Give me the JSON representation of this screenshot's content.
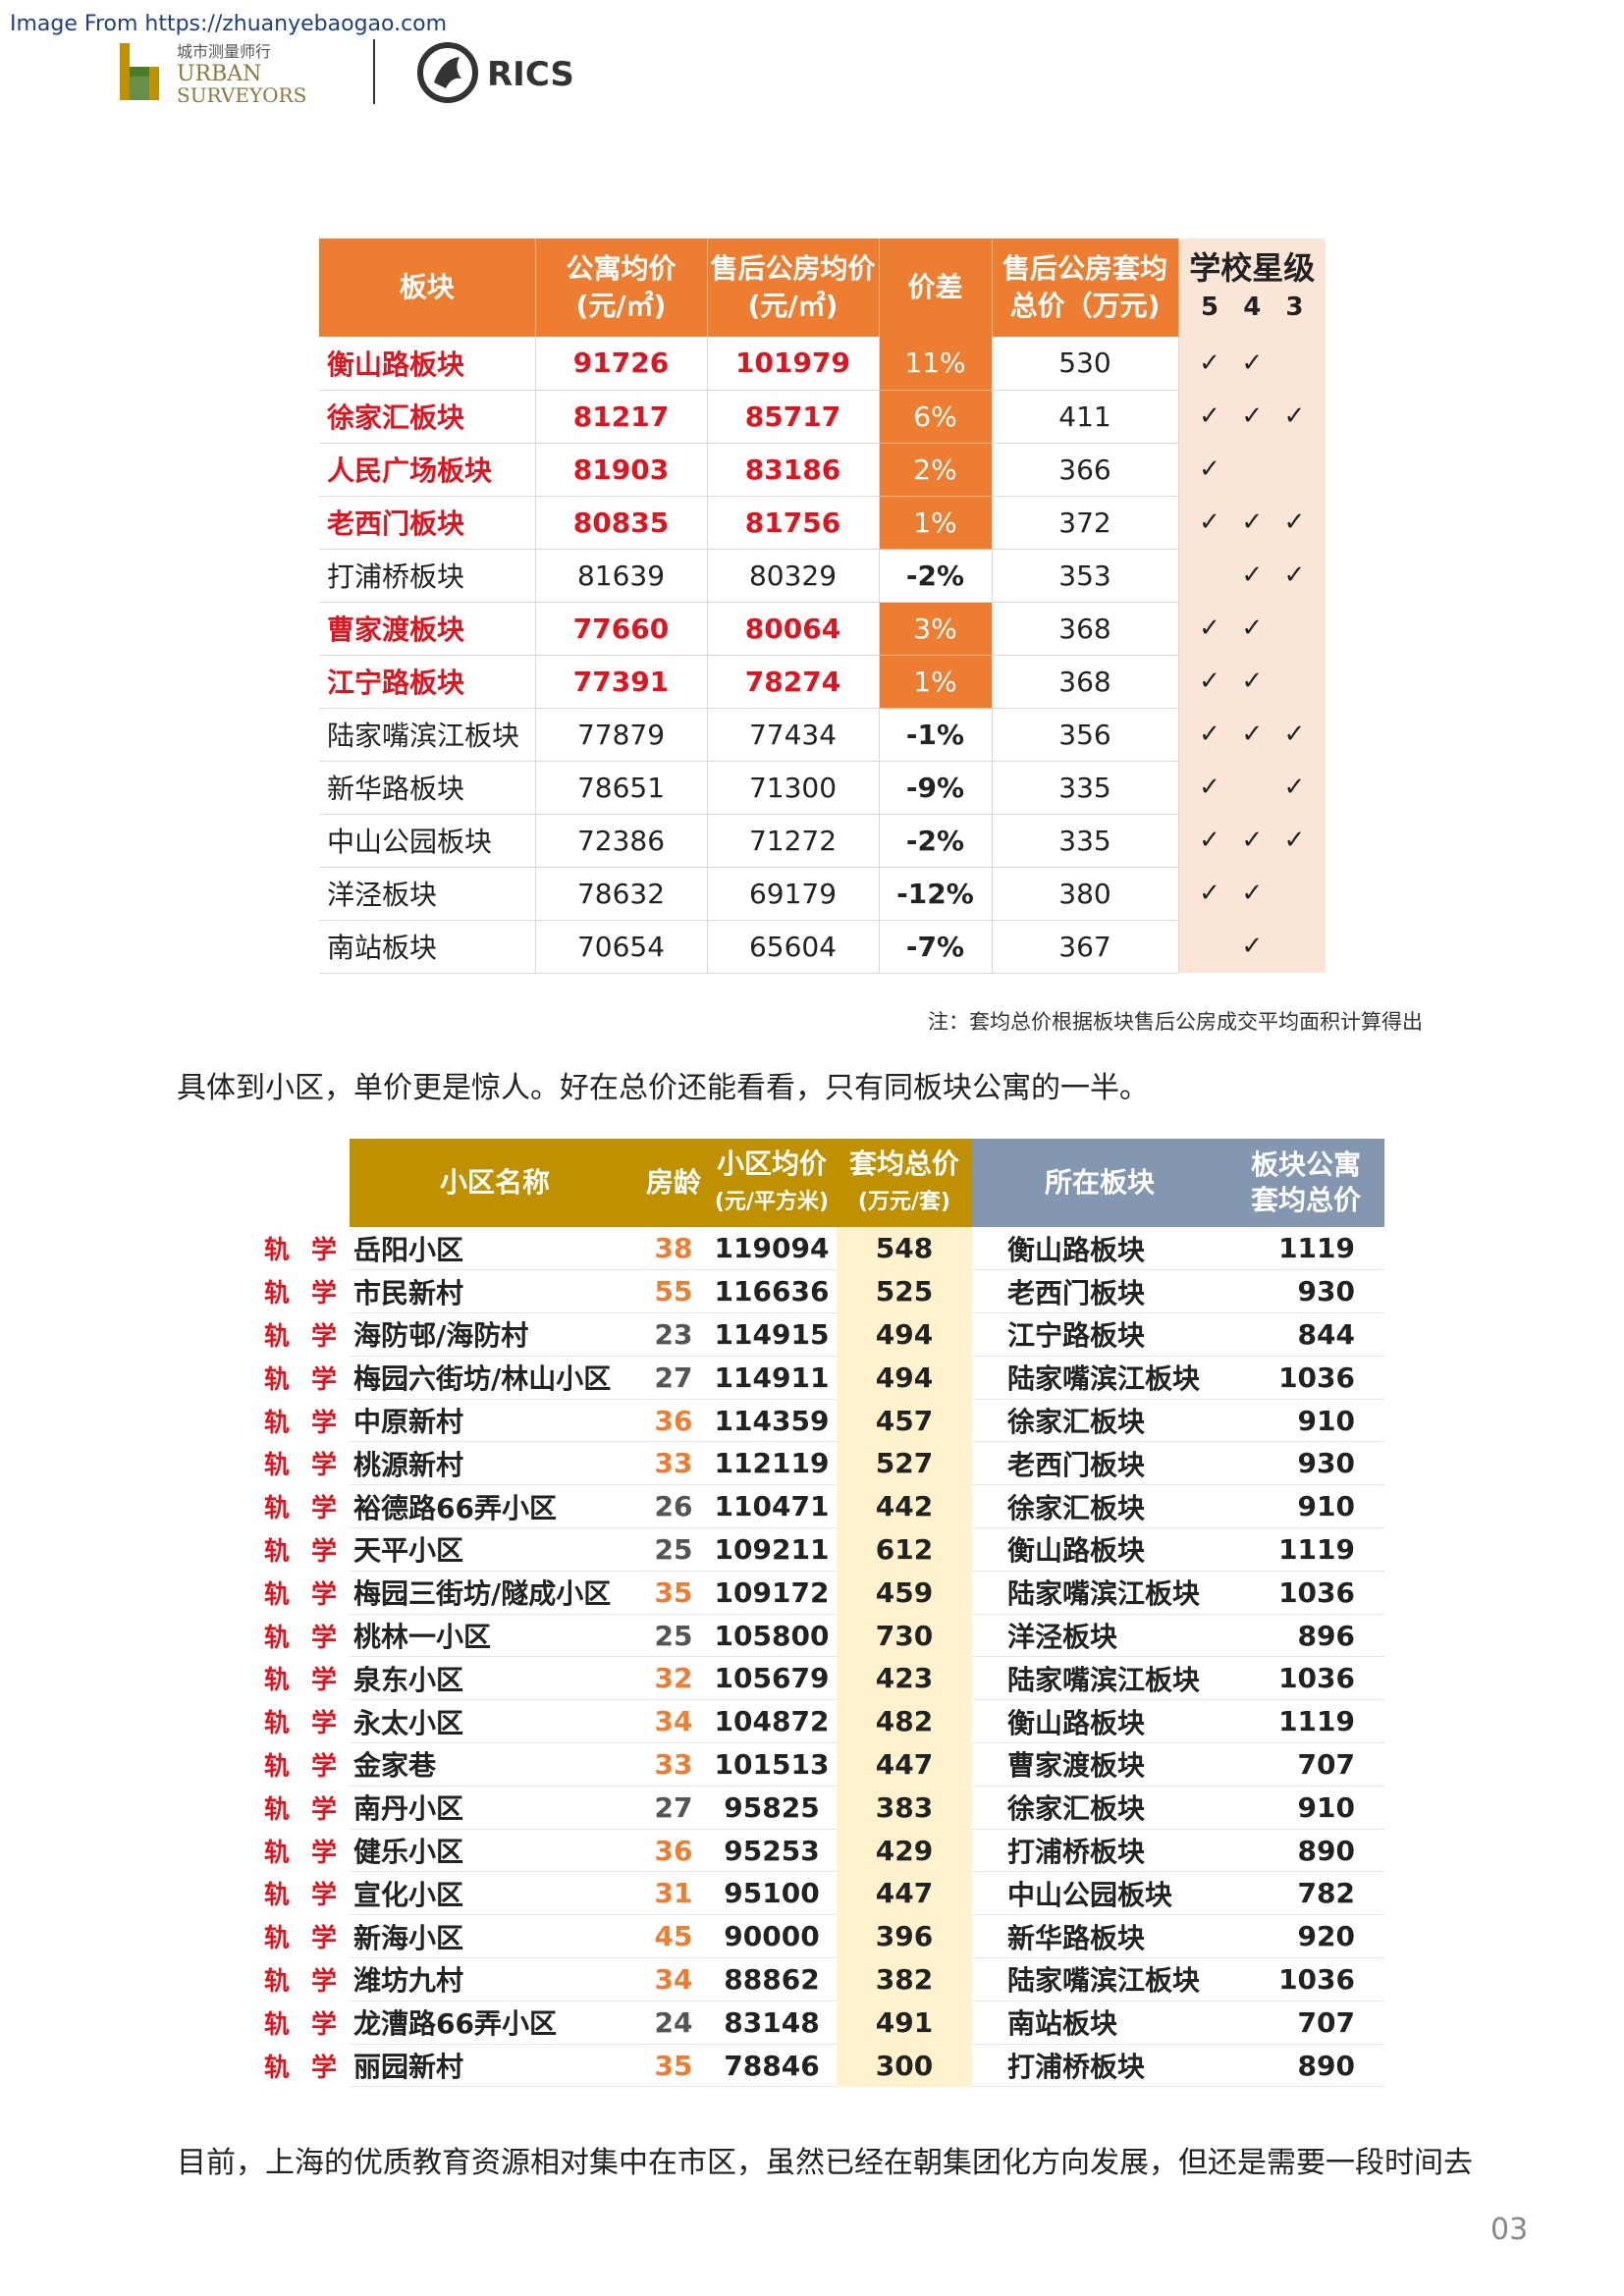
{
  "header": {
    "watermark": "Image From https://zhuanyebaogao.com",
    "urban_cn": "城市测量师行",
    "urban_en1": "URBAN",
    "urban_en2": "SURVEYORS",
    "rics": "RICS"
  },
  "table1": {
    "headers": [
      "板块",
      "公寓均价",
      "(元/㎡)",
      "售后公房均价",
      "(元/㎡)",
      "价差",
      "售后公房套均",
      "总价（万元)",
      "学校星级"
    ],
    "star_levels": [
      "5",
      "4",
      "3"
    ],
    "rows": [
      {
        "name": "衡山路板块",
        "apt": "91726",
        "pub": "101979",
        "diff": "11%",
        "total": "530",
        "s5": "✓",
        "s4": "✓",
        "s3": ""
      },
      {
        "name": "徐家汇板块",
        "apt": "81217",
        "pub": "85717",
        "diff": "6%",
        "total": "411",
        "s5": "✓",
        "s4": "✓",
        "s3": "✓"
      },
      {
        "name": "人民广场板块",
        "apt": "81903",
        "pub": "83186",
        "diff": "2%",
        "total": "366",
        "s5": "✓",
        "s4": "",
        "s3": ""
      },
      {
        "name": "老西门板块",
        "apt": "80835",
        "pub": "81756",
        "diff": "1%",
        "total": "372",
        "s5": "✓",
        "s4": "✓",
        "s3": "✓"
      },
      {
        "name": "打浦桥板块",
        "apt": "81639",
        "pub": "80329",
        "diff": "-2%",
        "total": "353",
        "s5": "",
        "s4": "✓",
        "s3": "✓"
      },
      {
        "name": "曹家渡板块",
        "apt": "77660",
        "pub": "80064",
        "diff": "3%",
        "total": "368",
        "s5": "✓",
        "s4": "✓",
        "s3": ""
      },
      {
        "name": "江宁路板块",
        "apt": "77391",
        "pub": "78274",
        "diff": "1%",
        "total": "368",
        "s5": "✓",
        "s4": "✓",
        "s3": ""
      },
      {
        "name": "陆家嘴滨江板块",
        "apt": "77879",
        "pub": "77434",
        "diff": "-1%",
        "total": "356",
        "s5": "✓",
        "s4": "✓",
        "s3": "✓"
      },
      {
        "name": "新华路板块",
        "apt": "78651",
        "pub": "71300",
        "diff": "-9%",
        "total": "335",
        "s5": "✓",
        "s4": "",
        "s3": "✓"
      },
      {
        "name": "中山公园板块",
        "apt": "72386",
        "pub": "71272",
        "diff": "-2%",
        "total": "335",
        "s5": "✓",
        "s4": "✓",
        "s3": "✓"
      },
      {
        "name": "洋泾板块",
        "apt": "78632",
        "pub": "69179",
        "diff": "-12%",
        "total": "380",
        "s5": "✓",
        "s4": "✓",
        "s3": ""
      },
      {
        "name": "南站板块",
        "apt": "70654",
        "pub": "65604",
        "diff": "-7%",
        "total": "367",
        "s5": "",
        "s4": "✓",
        "s3": ""
      }
    ],
    "highlight_rows": [
      0,
      1,
      2,
      3,
      5,
      6
    ],
    "note": "注：套均总价根据板块售后公房成交平均面积计算得出"
  },
  "para1": "具体到小区，单价更是惊人。好在总价还能看看，只有同板块公寓的一半。",
  "table2": {
    "headers": {
      "name": "小区名称",
      "age": "房龄",
      "price": "小区均价",
      "price_unit": "(元/平方米)",
      "total": "套均总价",
      "total_unit": "(万元/套)",
      "block": "所在板块",
      "btotal1": "板块公寓",
      "btotal2": "套均总价"
    },
    "tag1": "轨",
    "tag2": "学",
    "rows": [
      {
        "name": "岳阳小区",
        "age": "38",
        "price": "119094",
        "total": "548",
        "block": "衡山路板块",
        "btotal": "1119"
      },
      {
        "name": "市民新村",
        "age": "55",
        "price": "116636",
        "total": "525",
        "block": "老西门板块",
        "btotal": "930"
      },
      {
        "name": "海防邨/海防村",
        "age": "23",
        "price": "114915",
        "total": "494",
        "block": "江宁路板块",
        "btotal": "844"
      },
      {
        "name": "梅园六街坊/林山小区",
        "age": "27",
        "price": "114911",
        "total": "494",
        "block": "陆家嘴滨江板块",
        "btotal": "1036"
      },
      {
        "name": "中原新村",
        "age": "36",
        "price": "114359",
        "total": "457",
        "block": "徐家汇板块",
        "btotal": "910"
      },
      {
        "name": "桃源新村",
        "age": "33",
        "price": "112119",
        "total": "527",
        "block": "老西门板块",
        "btotal": "930"
      },
      {
        "name": "裕德路66弄小区",
        "age": "26",
        "price": "110471",
        "total": "442",
        "block": "徐家汇板块",
        "btotal": "910"
      },
      {
        "name": "天平小区",
        "age": "25",
        "price": "109211",
        "total": "612",
        "block": "衡山路板块",
        "btotal": "1119"
      },
      {
        "name": "梅园三街坊/隧成小区",
        "age": "35",
        "price": "109172",
        "total": "459",
        "block": "陆家嘴滨江板块",
        "btotal": "1036"
      },
      {
        "name": "桃林一小区",
        "age": "25",
        "price": "105800",
        "total": "730",
        "block": "洋泾板块",
        "btotal": "896"
      },
      {
        "name": "泉东小区",
        "age": "32",
        "price": "105679",
        "total": "423",
        "block": "陆家嘴滨江板块",
        "btotal": "1036"
      },
      {
        "name": "永太小区",
        "age": "34",
        "price": "104872",
        "total": "482",
        "block": "衡山路板块",
        "btotal": "1119"
      },
      {
        "name": "金家巷",
        "age": "33",
        "price": "101513",
        "total": "447",
        "block": "曹家渡板块",
        "btotal": "707"
      },
      {
        "name": "南丹小区",
        "age": "27",
        "price": "95825",
        "total": "383",
        "block": "徐家汇板块",
        "btotal": "910"
      },
      {
        "name": "健乐小区",
        "age": "36",
        "price": "95253",
        "total": "429",
        "block": "打浦桥板块",
        "btotal": "890"
      },
      {
        "name": "宣化小区",
        "age": "31",
        "price": "95100",
        "total": "447",
        "block": "中山公园板块",
        "btotal": "782"
      },
      {
        "name": "新海小区",
        "age": "45",
        "price": "90000",
        "total": "396",
        "block": "新华路板块",
        "btotal": "920"
      },
      {
        "name": "潍坊九村",
        "age": "34",
        "price": "88862",
        "total": "382",
        "block": "陆家嘴滨江板块",
        "btotal": "1036"
      },
      {
        "name": "龙漕路66弄小区",
        "age": "24",
        "price": "83148",
        "total": "491",
        "block": "南站板块",
        "btotal": "707"
      },
      {
        "name": "丽园新村",
        "age": "35",
        "price": "78846",
        "total": "300",
        "block": "打浦桥板块",
        "btotal": "890"
      }
    ]
  },
  "para2": "目前，上海的优质教育资源相对集中在市区，虽然已经在朝集团化方向发展，但还是需要一段时间去",
  "page_number": "03",
  "colors": {
    "orange": "#ed7d31",
    "gold": "#bf9000",
    "slate": "#8497b0",
    "red": "#e0141e"
  }
}
